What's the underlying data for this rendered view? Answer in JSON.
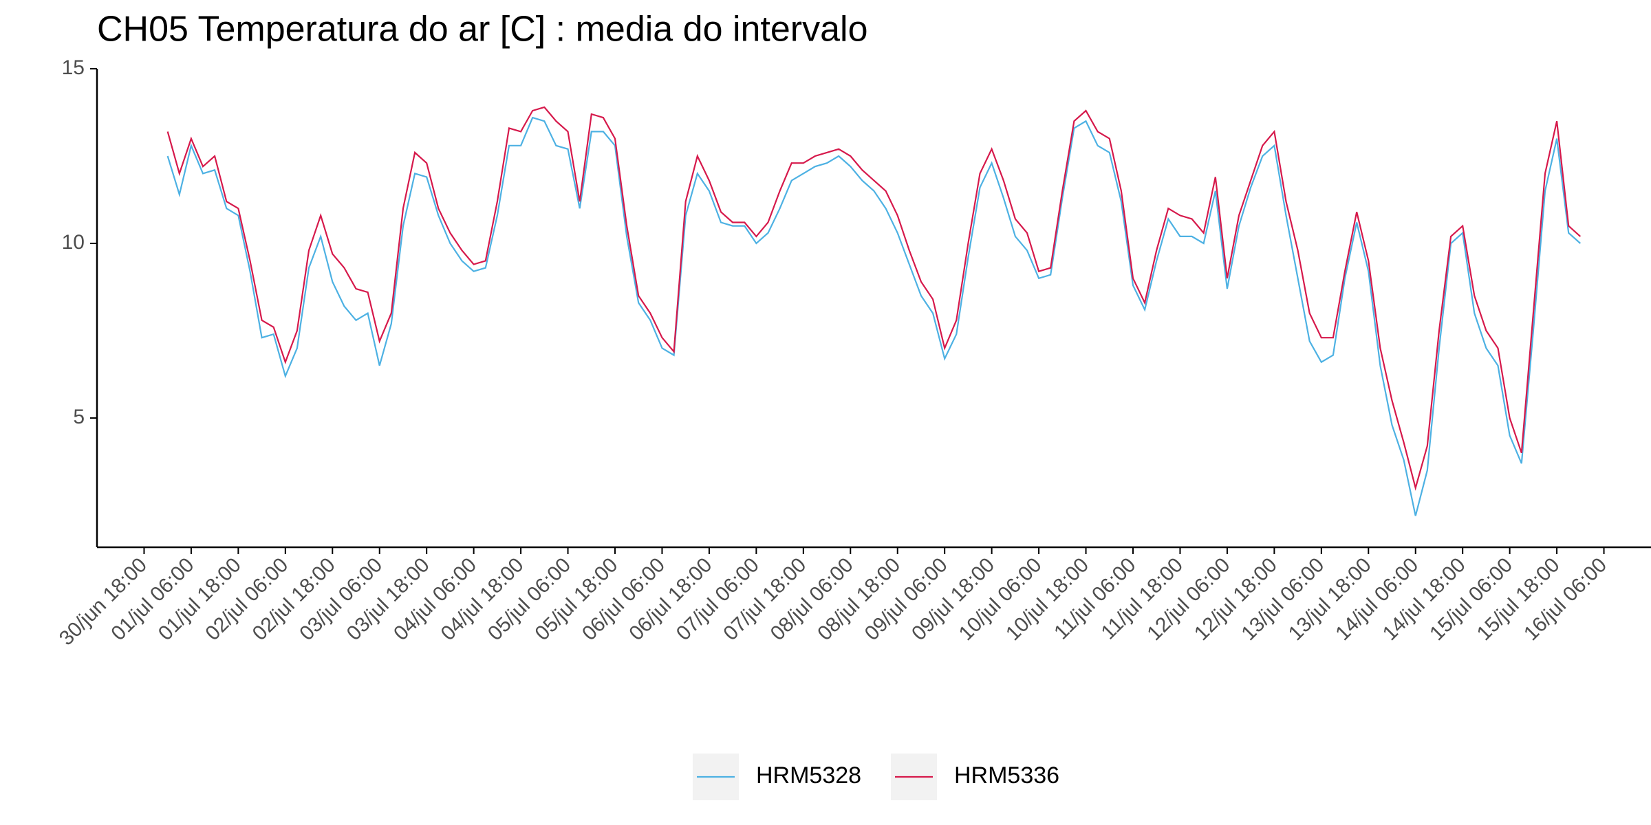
{
  "chart_data": {
    "type": "line",
    "title": "CH05 Temperatura do ar [C] : media do intervalo",
    "x": [
      "01/jul 00:00",
      "01/jul 03:00",
      "01/jul 06:00",
      "01/jul 09:00",
      "01/jul 12:00",
      "01/jul 15:00",
      "01/jul 18:00",
      "01/jul 21:00",
      "02/jul 00:00",
      "02/jul 03:00",
      "02/jul 06:00",
      "02/jul 09:00",
      "02/jul 12:00",
      "02/jul 15:00",
      "02/jul 18:00",
      "02/jul 21:00",
      "03/jul 00:00",
      "03/jul 03:00",
      "03/jul 06:00",
      "03/jul 09:00",
      "03/jul 12:00",
      "03/jul 15:00",
      "03/jul 18:00",
      "03/jul 21:00",
      "04/jul 00:00",
      "04/jul 03:00",
      "04/jul 06:00",
      "04/jul 09:00",
      "04/jul 12:00",
      "04/jul 15:00",
      "04/jul 18:00",
      "04/jul 21:00",
      "05/jul 00:00",
      "05/jul 03:00",
      "05/jul 06:00",
      "05/jul 09:00",
      "05/jul 12:00",
      "05/jul 15:00",
      "05/jul 18:00",
      "05/jul 21:00",
      "06/jul 00:00",
      "06/jul 03:00",
      "06/jul 06:00",
      "06/jul 09:00",
      "06/jul 12:00",
      "06/jul 15:00",
      "06/jul 18:00",
      "06/jul 21:00",
      "07/jul 00:00",
      "07/jul 03:00",
      "07/jul 06:00",
      "07/jul 09:00",
      "07/jul 12:00",
      "07/jul 15:00",
      "07/jul 18:00",
      "07/jul 21:00",
      "08/jul 00:00",
      "08/jul 03:00",
      "08/jul 06:00",
      "08/jul 09:00",
      "08/jul 12:00",
      "08/jul 15:00",
      "08/jul 18:00",
      "08/jul 21:00",
      "09/jul 00:00",
      "09/jul 03:00",
      "09/jul 06:00",
      "09/jul 09:00",
      "09/jul 12:00",
      "09/jul 15:00",
      "09/jul 18:00",
      "09/jul 21:00",
      "10/jul 00:00",
      "10/jul 03:00",
      "10/jul 06:00",
      "10/jul 09:00",
      "10/jul 12:00",
      "10/jul 15:00",
      "10/jul 18:00",
      "10/jul 21:00",
      "11/jul 00:00",
      "11/jul 03:00",
      "11/jul 06:00",
      "11/jul 09:00",
      "11/jul 12:00",
      "11/jul 15:00",
      "11/jul 18:00",
      "11/jul 21:00",
      "12/jul 00:00",
      "12/jul 03:00",
      "12/jul 06:00",
      "12/jul 09:00",
      "12/jul 12:00",
      "12/jul 15:00",
      "12/jul 18:00",
      "12/jul 21:00",
      "13/jul 00:00",
      "13/jul 03:00",
      "13/jul 06:00",
      "13/jul 09:00",
      "13/jul 12:00",
      "13/jul 15:00",
      "13/jul 18:00",
      "13/jul 21:00",
      "14/jul 00:00",
      "14/jul 03:00",
      "14/jul 06:00",
      "14/jul 09:00",
      "14/jul 12:00",
      "14/jul 15:00",
      "14/jul 18:00",
      "14/jul 21:00",
      "15/jul 00:00",
      "15/jul 03:00",
      "15/jul 06:00",
      "15/jul 09:00",
      "15/jul 12:00",
      "15/jul 15:00",
      "15/jul 18:00",
      "15/jul 21:00",
      "16/jul 00:00"
    ],
    "series": [
      {
        "name": "HRM5328",
        "color": "#4db1e3",
        "values": [
          12.5,
          11.4,
          12.8,
          12.0,
          12.1,
          11.0,
          10.8,
          9.2,
          7.3,
          7.4,
          6.2,
          7.0,
          9.3,
          10.2,
          8.9,
          8.2,
          7.8,
          8.0,
          6.5,
          7.7,
          10.5,
          12.0,
          11.9,
          10.8,
          10.0,
          9.5,
          9.2,
          9.3,
          10.8,
          12.8,
          12.8,
          13.6,
          13.5,
          12.8,
          12.7,
          11.0,
          13.2,
          13.2,
          12.8,
          10.2,
          8.3,
          7.8,
          7.0,
          6.8,
          10.8,
          12.0,
          11.5,
          10.6,
          10.5,
          10.5,
          10.0,
          10.3,
          11.0,
          11.8,
          12.0,
          12.2,
          12.3,
          12.5,
          12.2,
          11.8,
          11.5,
          11.0,
          10.3,
          9.4,
          8.5,
          8.0,
          6.7,
          7.4,
          9.6,
          11.6,
          12.3,
          11.3,
          10.2,
          9.8,
          9.0,
          9.1,
          11.3,
          13.3,
          13.5,
          12.8,
          12.6,
          11.2,
          8.8,
          8.1,
          9.5,
          10.7,
          10.2,
          10.2,
          10.0,
          11.5,
          8.7,
          10.5,
          11.6,
          12.5,
          12.8,
          10.8,
          9.0,
          7.2,
          6.6,
          6.8,
          9.0,
          10.6,
          9.2,
          6.5,
          4.8,
          3.8,
          2.2,
          3.5,
          7.0,
          10.0,
          10.3,
          8.0,
          7.0,
          6.5,
          4.5,
          3.7,
          7.5,
          11.5,
          13.0,
          10.3,
          10.0
        ]
      },
      {
        "name": "HRM5336",
        "color": "#d6194b",
        "values": [
          13.2,
          12.0,
          13.0,
          12.2,
          12.5,
          11.2,
          11.0,
          9.5,
          7.8,
          7.6,
          6.6,
          7.5,
          9.8,
          10.8,
          9.7,
          9.3,
          8.7,
          8.6,
          7.2,
          8.0,
          11.0,
          12.6,
          12.3,
          11.0,
          10.3,
          9.8,
          9.4,
          9.5,
          11.2,
          13.3,
          13.2,
          13.8,
          13.9,
          13.5,
          13.2,
          11.2,
          13.7,
          13.6,
          13.0,
          10.5,
          8.5,
          8.0,
          7.3,
          6.9,
          11.2,
          12.5,
          11.8,
          10.9,
          10.6,
          10.6,
          10.2,
          10.6,
          11.5,
          12.3,
          12.3,
          12.5,
          12.6,
          12.7,
          12.5,
          12.1,
          11.8,
          11.5,
          10.8,
          9.8,
          8.9,
          8.4,
          7.0,
          7.8,
          10.0,
          12.0,
          12.7,
          11.8,
          10.7,
          10.3,
          9.2,
          9.3,
          11.5,
          13.5,
          13.8,
          13.2,
          13.0,
          11.5,
          9.0,
          8.3,
          9.8,
          11.0,
          10.8,
          10.7,
          10.3,
          11.9,
          9.0,
          10.8,
          11.8,
          12.8,
          13.2,
          11.2,
          9.8,
          8.0,
          7.3,
          7.3,
          9.2,
          10.9,
          9.5,
          7.0,
          5.5,
          4.3,
          3.0,
          4.2,
          7.5,
          10.2,
          10.5,
          8.5,
          7.5,
          7.0,
          5.0,
          4.0,
          8.0,
          12.0,
          13.5,
          10.5,
          10.2
        ]
      }
    ],
    "xlim": [
      "30/jun 06:00",
      "16/jul 18:00"
    ],
    "xticks": [
      "30/jun 18:00",
      "01/jul 06:00",
      "01/jul 18:00",
      "02/jul 06:00",
      "02/jul 18:00",
      "03/jul 06:00",
      "03/jul 18:00",
      "04/jul 06:00",
      "04/jul 18:00",
      "05/jul 06:00",
      "05/jul 18:00",
      "06/jul 06:00",
      "06/jul 18:00",
      "07/jul 06:00",
      "07/jul 18:00",
      "08/jul 06:00",
      "08/jul 18:00",
      "09/jul 06:00",
      "09/jul 18:00",
      "10/jul 06:00",
      "10/jul 18:00",
      "11/jul 06:00",
      "11/jul 18:00",
      "12/jul 06:00",
      "12/jul 18:00",
      "13/jul 06:00",
      "13/jul 18:00",
      "14/jul 06:00",
      "14/jul 18:00",
      "15/jul 06:00",
      "15/jul 18:00",
      "16/jul 06:00"
    ],
    "ylim": [
      1.3,
      15
    ],
    "yticks": [
      5,
      10,
      15
    ],
    "grid": false,
    "legend": "bottom"
  }
}
